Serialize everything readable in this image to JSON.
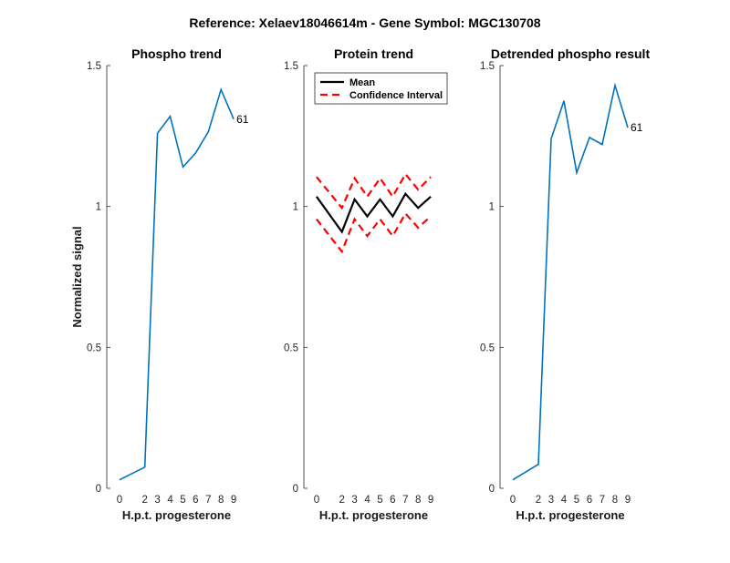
{
  "figure_title": "Reference:  Xelaev18046614m - Gene Symbol:  MGC130708",
  "chart_data": [
    {
      "type": "line",
      "title": "Phospho trend",
      "xlabel": "H.p.t. progesterone",
      "ylabel": "Normalized signal",
      "ylim": [
        0,
        1.5
      ],
      "yticks": [
        "0",
        "0.5",
        "1",
        "1.5"
      ],
      "x": [
        0,
        2,
        3,
        4,
        5,
        6,
        7,
        8,
        9
      ],
      "series": [
        {
          "values": [
            0.03,
            0.075,
            1.26,
            1.32,
            1.14,
            1.19,
            1.265,
            1.415,
            1.31
          ],
          "color": "#0072BD",
          "style": "solid"
        }
      ],
      "end_label": "61"
    },
    {
      "type": "line",
      "title": "Protein trend",
      "xlabel": "H.p.t. progesterone",
      "ylabel": "",
      "ylim": [
        0,
        1.5
      ],
      "yticks": [
        "0",
        "0.5",
        "1",
        "1.5"
      ],
      "x": [
        0,
        2,
        3,
        4,
        5,
        6,
        7,
        8,
        9
      ],
      "series": [
        {
          "name": "Mean",
          "values": [
            1.035,
            0.91,
            1.025,
            0.965,
            1.025,
            0.965,
            1.045,
            0.995,
            1.035
          ],
          "color": "#000000",
          "style": "solid"
        },
        {
          "name": "Confidence Interval",
          "values": [
            1.105,
            0.995,
            1.1,
            1.035,
            1.1,
            1.035,
            1.115,
            1.06,
            1.105
          ],
          "color": "#ff0000",
          "style": "dashed"
        },
        {
          "values": [
            0.955,
            0.84,
            0.955,
            0.895,
            0.955,
            0.895,
            0.975,
            0.925,
            0.965
          ],
          "color": "#ff0000",
          "style": "dashed"
        }
      ],
      "legend": {
        "placement": "top-left",
        "entries": [
          "Mean",
          "Confidence Interval"
        ]
      }
    },
    {
      "type": "line",
      "title": "Detrended phospho result",
      "xlabel": "H.p.t. progesterone",
      "ylabel": "",
      "ylim": [
        0,
        1.5
      ],
      "yticks": [
        "0",
        "0.5",
        "1",
        "1.5"
      ],
      "x": [
        0,
        2,
        3,
        4,
        5,
        6,
        7,
        8,
        9
      ],
      "series": [
        {
          "values": [
            0.03,
            0.085,
            1.24,
            1.375,
            1.12,
            1.245,
            1.22,
            1.43,
            1.28
          ],
          "color": "#0072BD",
          "style": "solid"
        }
      ],
      "end_label": "61"
    }
  ]
}
